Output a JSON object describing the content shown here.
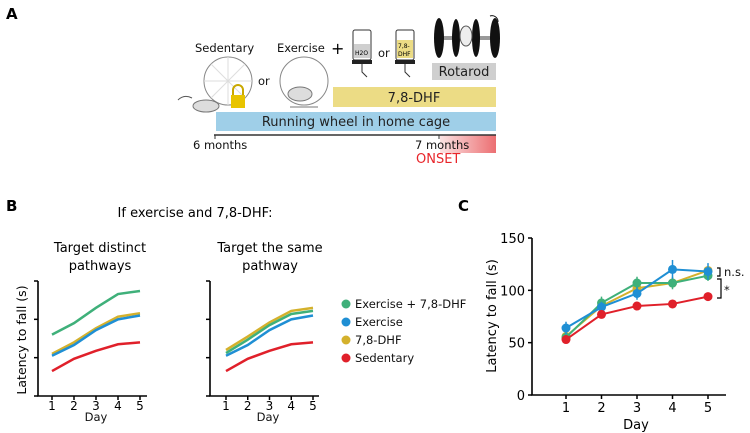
{
  "panels": {
    "a": "A",
    "b": "B",
    "c": "C"
  },
  "panel_a": {
    "sedentary": "Sedentary",
    "exercise": "Exercise",
    "or1": "or",
    "plus": "+",
    "or2": "or",
    "bottle_water": "H2O",
    "bottle_drug_line1": "7,8-",
    "bottle_drug_line2": "DHF",
    "rotarod": "Rotarod",
    "drug_bar": "7,8-DHF",
    "wheel_bar": "Running wheel in home cage",
    "start": "6 months",
    "end": "7 months",
    "onset": "ONSET",
    "colors": {
      "drug_bar": "#ecdc85",
      "wheel_bar": "#9fcfe8",
      "rotarod": "#cfcfcf",
      "onset": "#e8252a"
    }
  },
  "panel_b": {
    "title": "If exercise and 7,8-DHF:",
    "ylabel": "Latency to fall (s)",
    "xlabel": "Day",
    "legend": [
      "Exercise + 7,8-DHF",
      "Exercise",
      "7,8-DHF",
      "Sedentary"
    ]
  },
  "chart_data": [
    {
      "type": "line",
      "title": "Target distinct pathways",
      "title_line1": "Target distinct",
      "title_line2": "pathways",
      "xlabel": "Day",
      "ylabel": "Latency to fall (s)",
      "x": [
        1,
        2,
        3,
        4,
        5
      ],
      "ylim": [
        0,
        3
      ],
      "series": [
        {
          "name": "Exercise + 7,8-DHF",
          "color": "#3fb07a",
          "values": [
            1.6,
            1.9,
            2.3,
            2.66,
            2.74
          ]
        },
        {
          "name": "7,8-DHF",
          "color": "#d4b12c",
          "values": [
            1.1,
            1.4,
            1.77,
            2.07,
            2.16
          ]
        },
        {
          "name": "Exercise",
          "color": "#1f8fd4",
          "values": [
            1.05,
            1.33,
            1.72,
            2.0,
            2.1
          ]
        },
        {
          "name": "Sedentary",
          "color": "#e0202a",
          "values": [
            0.65,
            0.97,
            1.18,
            1.35,
            1.4
          ]
        }
      ]
    },
    {
      "type": "line",
      "title": "Target the same pathway",
      "title_line1": "Target the same",
      "title_line2": "pathway",
      "xlabel": "Day",
      "ylabel": "Latency to fall (s)",
      "x": [
        1,
        2,
        3,
        4,
        5
      ],
      "ylim": [
        0,
        3
      ],
      "series": [
        {
          "name": "7,8-DHF",
          "color": "#d4b12c",
          "values": [
            1.2,
            1.55,
            1.92,
            2.22,
            2.3
          ]
        },
        {
          "name": "Exercise + 7,8-DHF",
          "color": "#3fb07a",
          "values": [
            1.12,
            1.47,
            1.85,
            2.14,
            2.22
          ]
        },
        {
          "name": "Exercise",
          "color": "#1f8fd4",
          "values": [
            1.05,
            1.33,
            1.72,
            2.0,
            2.1
          ]
        },
        {
          "name": "Sedentary",
          "color": "#e0202a",
          "values": [
            0.65,
            0.97,
            1.18,
            1.35,
            1.4
          ]
        }
      ]
    },
    {
      "type": "line",
      "xlabel": "Day",
      "ylabel": "Latency to fall (s)",
      "x": [
        1,
        2,
        3,
        4,
        5
      ],
      "ylim": [
        0,
        150
      ],
      "yticks": [
        0,
        50,
        100,
        150
      ],
      "series": [
        {
          "name": "7,8-DHF",
          "color": "#d4b12c",
          "values": [
            56,
            85,
            102,
            107,
            119
          ],
          "err": [
            4,
            4,
            4,
            4,
            4
          ]
        },
        {
          "name": "Exercise + 7,8-DHF",
          "color": "#3fb07a",
          "values": [
            55,
            88,
            107,
            107,
            114
          ],
          "err": [
            5,
            6,
            6,
            6,
            5
          ]
        },
        {
          "name": "Exercise",
          "color": "#1f8fd4",
          "values": [
            64,
            84,
            97,
            120,
            118
          ],
          "err": [
            6,
            5,
            6,
            9,
            8
          ]
        },
        {
          "name": "Sedentary",
          "color": "#e0202a",
          "values": [
            53,
            77,
            85,
            87,
            94
          ],
          "err": [
            4,
            3,
            3,
            3,
            4
          ]
        }
      ],
      "annotations": [
        "n.s.",
        "*"
      ]
    }
  ]
}
